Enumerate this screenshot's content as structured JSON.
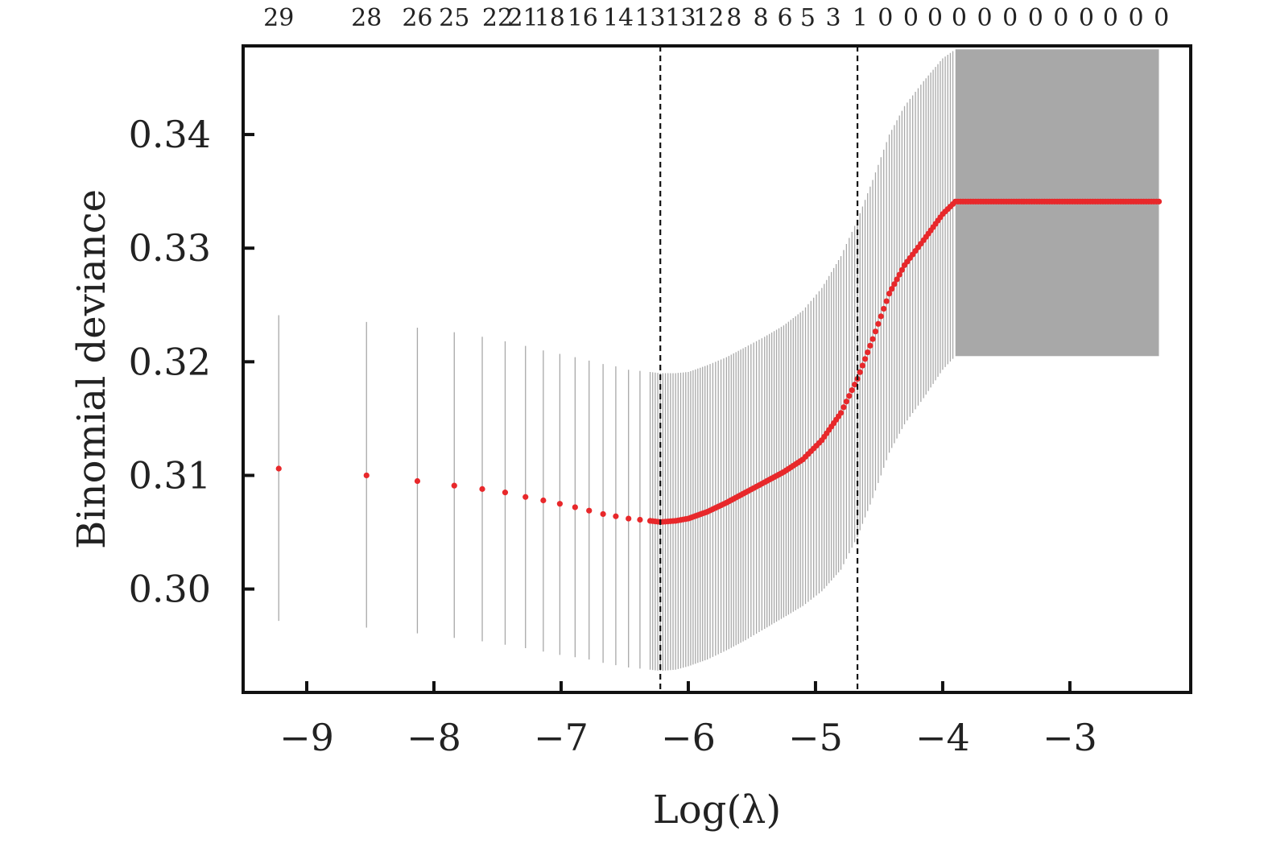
{
  "chart_data": {
    "type": "scatter",
    "title": "",
    "xlabel": "Log(λ)",
    "ylabel": "Binomial deviance",
    "xlim": [
      -9.5,
      -2.05
    ],
    "ylim": [
      0.2909,
      0.3478
    ],
    "x_ticks": [
      -9,
      -8,
      -7,
      -6,
      -5,
      -4,
      -3
    ],
    "x_tick_labels": [
      "−9",
      "−8",
      "−7",
      "−6",
      "−5",
      "−4",
      "−3"
    ],
    "y_ticks": [
      0.3,
      0.31,
      0.32,
      0.33,
      0.34
    ],
    "y_tick_labels": [
      "0.30",
      "0.31",
      "0.32",
      "0.33",
      "0.34"
    ],
    "top_axis": {
      "x": [
        -9.22,
        -8.53,
        -8.13,
        -7.84,
        -7.5,
        -7.3,
        -7.09,
        -6.83,
        -6.55,
        -6.3,
        -6.06,
        -5.84,
        -5.64,
        -5.43,
        -5.24,
        -5.06,
        -4.86,
        -4.65,
        -4.45,
        -4.25,
        -4.06,
        -3.87,
        -3.67,
        -3.47,
        -3.27,
        -3.07,
        -2.87,
        -2.68,
        -2.48,
        -2.28
      ],
      "labels": [
        "29",
        "28",
        "26",
        "25",
        "22",
        "21",
        "18",
        "16",
        "14",
        "13",
        "13",
        "12",
        "8",
        "8",
        "6",
        "5",
        "3",
        "1",
        "0",
        "0",
        "0",
        "0",
        "0",
        "0",
        "0",
        "0",
        "0",
        "0",
        "0",
        "0"
      ]
    },
    "vlines": [
      -6.22,
      -4.67
    ],
    "series": [
      {
        "points": [
          [
            -9.22,
            0.3106,
            0.3241,
            0.2972
          ],
          [
            -8.53,
            0.31,
            0.3235,
            0.2966
          ],
          [
            -8.13,
            0.3095,
            0.323,
            0.2961
          ],
          [
            -7.84,
            0.3091,
            0.3226,
            0.2957
          ],
          [
            -7.62,
            0.3088,
            0.3222,
            0.2954
          ],
          [
            -7.44,
            0.3085,
            0.3218,
            0.2951
          ],
          [
            -7.28,
            0.3081,
            0.3214,
            0.2948
          ],
          [
            -7.14,
            0.3078,
            0.321,
            0.2945
          ],
          [
            -7.01,
            0.3075,
            0.3207,
            0.2942
          ],
          [
            -6.89,
            0.3072,
            0.3204,
            0.294
          ],
          [
            -6.78,
            0.3069,
            0.3201,
            0.2938
          ],
          [
            -6.67,
            0.3066,
            0.3198,
            0.2935
          ],
          [
            -6.57,
            0.3064,
            0.3196,
            0.2933
          ],
          [
            -6.47,
            0.3062,
            0.3193,
            0.2931
          ],
          [
            -6.38,
            0.3061,
            0.3192,
            0.293
          ],
          [
            -6.3,
            0.306,
            0.3191,
            0.2929
          ],
          [
            -6.22,
            0.3059,
            0.319,
            0.2928
          ],
          [
            -6.1,
            0.306,
            0.319,
            0.2929
          ],
          [
            -6.0,
            0.3062,
            0.3191,
            0.2932
          ],
          [
            -5.85,
            0.3068,
            0.3197,
            0.2938
          ],
          [
            -5.7,
            0.3076,
            0.3204,
            0.2946
          ],
          [
            -5.55,
            0.3085,
            0.3213,
            0.2955
          ],
          [
            -5.4,
            0.3094,
            0.3222,
            0.2965
          ],
          [
            -5.25,
            0.3103,
            0.3232,
            0.2975
          ],
          [
            -5.1,
            0.3114,
            0.3245,
            0.2985
          ],
          [
            -4.95,
            0.3131,
            0.3265,
            0.2998
          ],
          [
            -4.8,
            0.3155,
            0.3293,
            0.3017
          ],
          [
            -4.67,
            0.3185,
            0.3325,
            0.3046
          ],
          [
            -4.55,
            0.322,
            0.336,
            0.308
          ],
          [
            -4.42,
            0.326,
            0.34,
            0.312
          ],
          [
            -4.3,
            0.3285,
            0.3425,
            0.3145
          ],
          [
            -4.15,
            0.3307,
            0.3447,
            0.3168
          ],
          [
            -4.0,
            0.333,
            0.3467,
            0.3193
          ],
          [
            -3.9,
            0.3341,
            0.3475,
            0.3205
          ],
          [
            -3.6,
            0.3341,
            0.3475,
            0.3205
          ],
          [
            -3.2,
            0.3341,
            0.3475,
            0.3205
          ],
          [
            -2.8,
            0.3341,
            0.3475,
            0.3205
          ],
          [
            -2.3,
            0.3341,
            0.3475,
            0.3205
          ]
        ]
      }
    ],
    "grid": false,
    "colors": {
      "point": "#e8282b",
      "error_bar": "#a8a8a8",
      "frame": "#111111",
      "vline": "#111111"
    }
  }
}
